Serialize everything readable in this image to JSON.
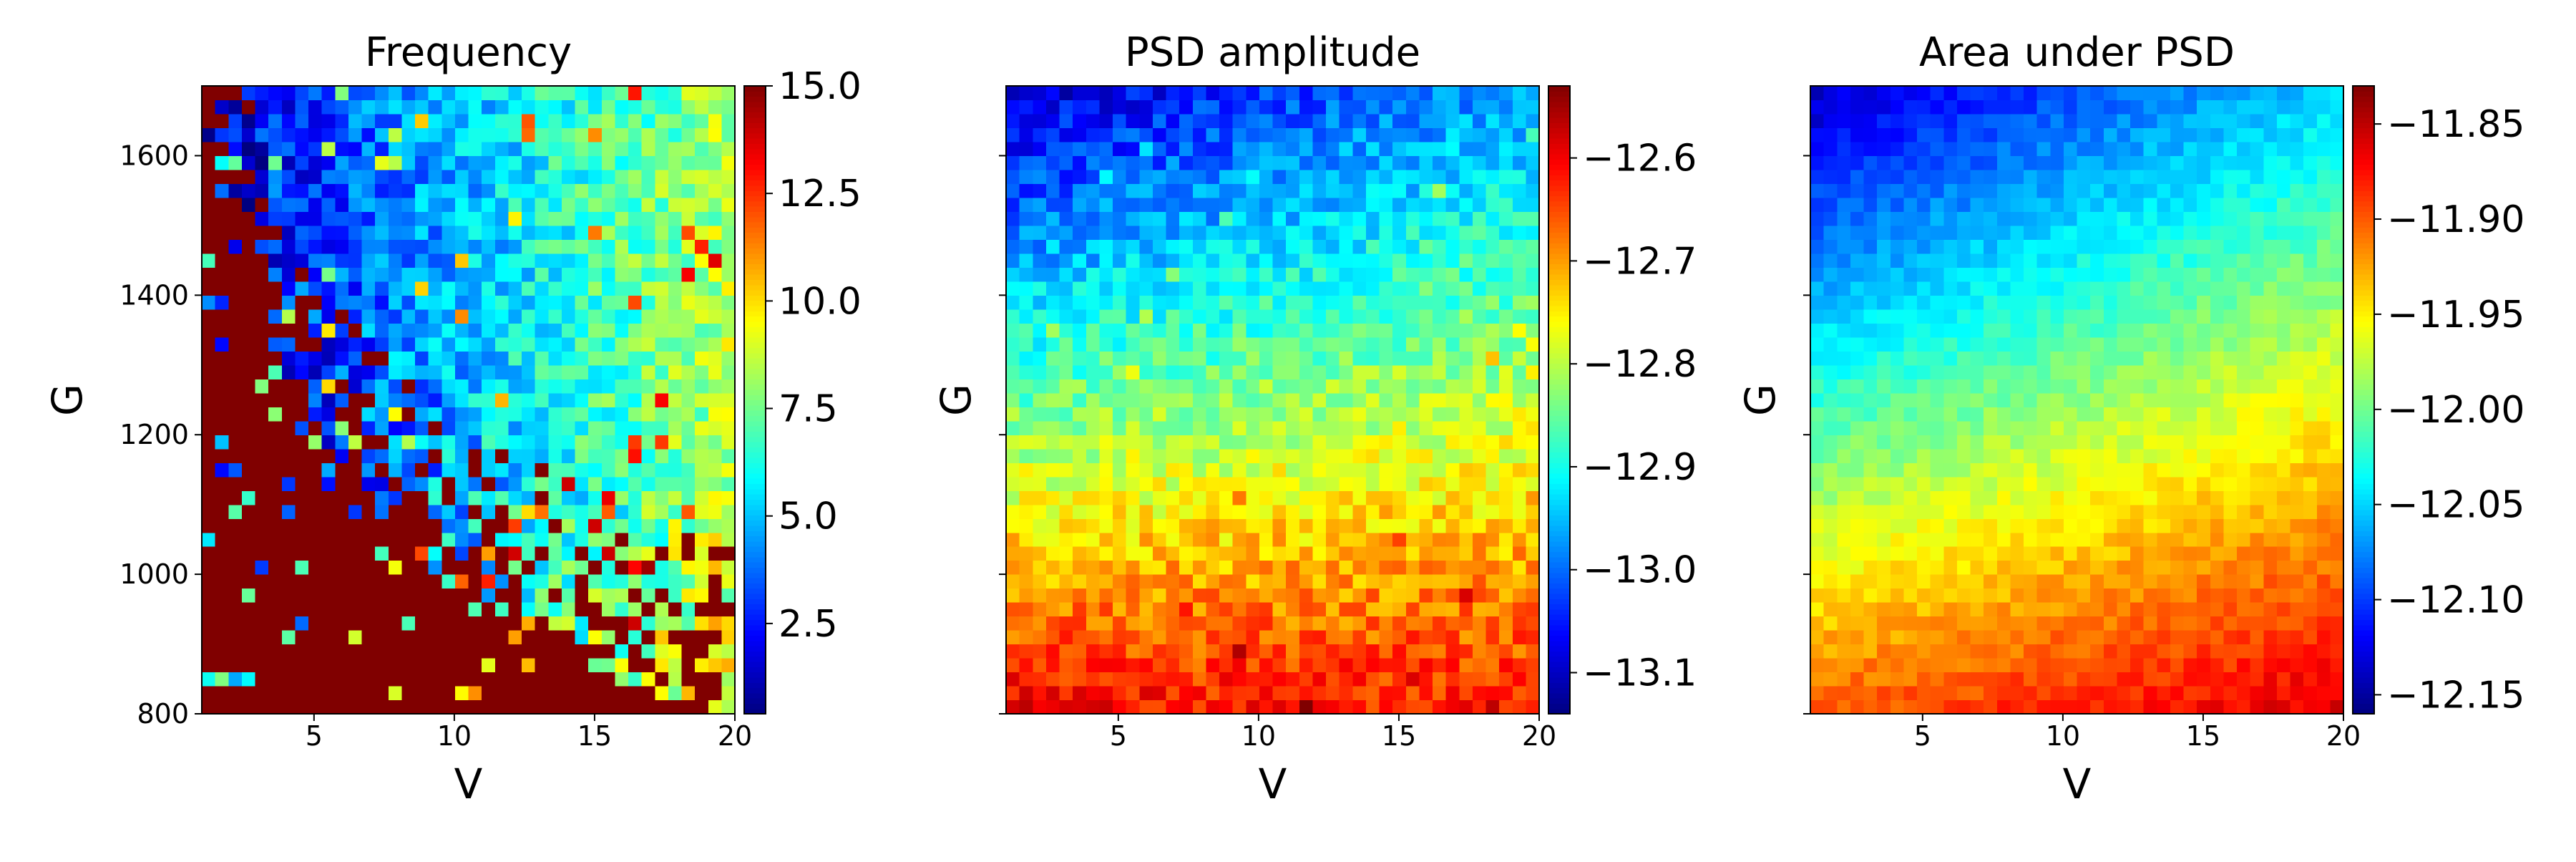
{
  "chart_data": [
    {
      "type": "heatmap",
      "title": "Frequency",
      "xlabel": "V",
      "ylabel": "G",
      "xlim": [
        1,
        20
      ],
      "ylim": [
        800,
        1700
      ],
      "xticks": [
        5,
        10,
        15,
        20
      ],
      "xtick_labels": [
        "5",
        "10",
        "15",
        "20"
      ],
      "yticks": [
        800,
        1000,
        1200,
        1400,
        1600
      ],
      "ytick_labels": [
        "800",
        "1000",
        "1200",
        "1400",
        "1600"
      ],
      "colormap": "jet",
      "color_range": [
        0.4,
        15.0
      ],
      "colorbar_ticks": [
        2.5,
        5.0,
        7.5,
        10.0,
        12.5,
        15.0
      ],
      "colorbar_tick_labels": [
        "2.5",
        "5.0",
        "7.5",
        "10.0",
        "12.5",
        "15.0"
      ],
      "grid_nx": 40,
      "grid_ny": 45,
      "value_description": "Saturated at 15.0 (dark red) in the lower-left region below the boundary from G≈1700 at V=1 through G≈1200 at V≈5 and G≈950 at V≈12; about 1.5 (blue) at upper-left, increasing toward about 8.5 at upper-right; scattered high values near the boundary",
      "corner_values": {
        "V1_G1700": 1.5,
        "V20_G1700": 8.5,
        "V20_G1000": 10.5,
        "V1_G800": 15.0
      }
    },
    {
      "type": "heatmap",
      "title": "PSD amplitude",
      "xlabel": "V",
      "ylabel": "G",
      "xlim": [
        1,
        20
      ],
      "ylim": [
        800,
        1700
      ],
      "xticks": [
        5,
        10,
        15,
        20
      ],
      "xtick_labels": [
        "5",
        "10",
        "15",
        "20"
      ],
      "yticks": [
        800,
        1000,
        1200,
        1400,
        1600
      ],
      "ytick_labels": [
        "",
        "",
        "",
        "",
        ""
      ],
      "colormap": "jet",
      "color_range": [
        -13.14,
        -12.53
      ],
      "colorbar_ticks": [
        -13.1,
        -13.0,
        -12.9,
        -12.8,
        -12.7,
        -12.6
      ],
      "colorbar_tick_labels": [
        "−13.1",
        "−13.0",
        "−12.9",
        "−12.8",
        "−12.7",
        "−12.6"
      ],
      "grid_nx": 40,
      "grid_ny": 45,
      "value_description": "Increases steadily from top to bottom",
      "corner_values": {
        "V1_G1700": -13.1,
        "V20_G1700": -12.97,
        "V1_G800": -12.6,
        "V20_G800": -12.62
      }
    },
    {
      "type": "heatmap",
      "title": "Area under PSD",
      "xlabel": "V",
      "ylabel": "G",
      "xlim": [
        1,
        20
      ],
      "ylim": [
        800,
        1700
      ],
      "xticks": [
        5,
        10,
        15,
        20
      ],
      "xtick_labels": [
        "5",
        "10",
        "15",
        "20"
      ],
      "yticks": [
        800,
        1000,
        1200,
        1400,
        1600
      ],
      "ytick_labels": [
        "",
        "",
        "",
        "",
        ""
      ],
      "colormap": "jet",
      "color_range": [
        -12.16,
        -11.83
      ],
      "colorbar_ticks": [
        -12.15,
        -12.1,
        -12.05,
        -12.0,
        -11.95,
        -11.9,
        -11.85
      ],
      "colorbar_tick_labels": [
        "−12.15",
        "−12.10",
        "−12.05",
        "−12.00",
        "−11.95",
        "−11.90",
        "−11.85"
      ],
      "grid_nx": 40,
      "grid_ny": 45,
      "value_description": "Increases from top-left toward bottom-right",
      "corner_values": {
        "V1_G1700": -12.14,
        "V20_G1700": -12.05,
        "V1_G800": -11.9,
        "V20_G800": -11.86
      }
    }
  ]
}
